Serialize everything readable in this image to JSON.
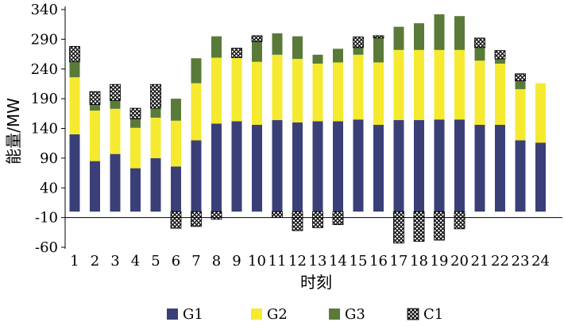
{
  "chart_data": {
    "type": "bar",
    "stacked": true,
    "title": "",
    "xlabel": "时刻",
    "ylabel": "能量/MW",
    "ylim": [
      -60,
      340
    ],
    "yticks": [
      340,
      290,
      240,
      190,
      140,
      90,
      40,
      -10,
      -60
    ],
    "categories": [
      "1",
      "2",
      "3",
      "4",
      "5",
      "6",
      "7",
      "8",
      "9",
      "10",
      "11",
      "12",
      "13",
      "14",
      "15",
      "16",
      "17",
      "18",
      "19",
      "20",
      "21",
      "22",
      "23",
      "24"
    ],
    "legend_position": "bottom",
    "series": [
      {
        "name": "G1",
        "color": "#3b3f78",
        "pattern": "solid",
        "values": [
          130,
          85,
          97,
          73,
          90,
          76,
          120,
          148,
          152,
          146,
          154,
          150,
          152,
          152,
          155,
          146,
          154,
          154,
          155,
          155,
          146,
          146,
          120,
          116
        ]
      },
      {
        "name": "G2",
        "color": "#f5ea2f",
        "pattern": "solid",
        "values": [
          96,
          85,
          76,
          68,
          68,
          77,
          96,
          111,
          107,
          106,
          110,
          107,
          97,
          99,
          109,
          105,
          118,
          118,
          117,
          117,
          108,
          103,
          86,
          100
        ]
      },
      {
        "name": "G3",
        "color": "#5a7a3a",
        "pattern": "solid",
        "values": [
          26,
          10,
          14,
          15,
          16,
          37,
          42,
          36,
          0,
          34,
          36,
          38,
          15,
          23,
          12,
          41,
          39,
          45,
          60,
          57,
          22,
          8,
          14,
          0
        ]
      },
      {
        "name": "C1",
        "color": "#000000",
        "pattern": "crosshatch",
        "values": [
          26,
          22,
          27,
          18,
          40,
          -28,
          -25,
          -13,
          16,
          10,
          -10,
          -32,
          -27,
          -22,
          18,
          4,
          -53,
          -50,
          -48,
          -29,
          16,
          14,
          12,
          0
        ]
      }
    ]
  },
  "legend": {
    "g1": "G1",
    "g2": "G2",
    "g3": "G3",
    "c1": "C1"
  }
}
